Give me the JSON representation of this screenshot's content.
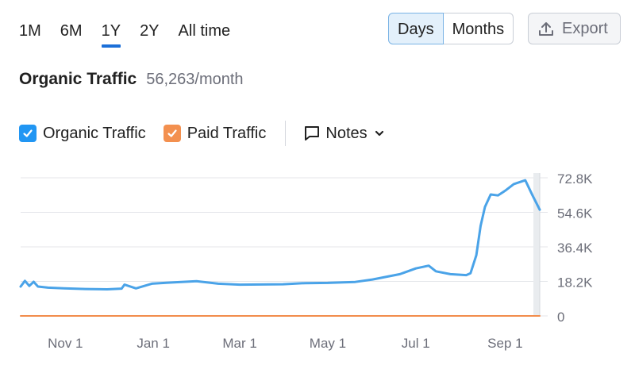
{
  "range_tabs": [
    {
      "label": "1M",
      "active": false
    },
    {
      "label": "6M",
      "active": false
    },
    {
      "label": "1Y",
      "active": true
    },
    {
      "label": "2Y",
      "active": false
    },
    {
      "label": "All time",
      "active": false
    }
  ],
  "granularity": {
    "days": "Days",
    "months": "Months",
    "selected": "Days"
  },
  "export_label": "Export",
  "header": {
    "title": "Organic Traffic",
    "value": "56,263/month"
  },
  "legend": {
    "organic": "Organic Traffic",
    "paid": "Paid Traffic",
    "notes": "Notes"
  },
  "colors": {
    "organic": "#4aa3e8",
    "paid": "#f28c4b",
    "checkbox_organic": "#2196f3",
    "checkbox_paid": "#f3904f",
    "active_tab": "#1b6fd8"
  },
  "icons": {
    "export": "upload-icon",
    "notes": "comment-icon",
    "dropdown": "chevron-down-icon",
    "check": "check-icon"
  },
  "chart_data": {
    "type": "line",
    "x_tick_labels": [
      "Nov 1",
      "Jan 1",
      "Mar 1",
      "May 1",
      "Jul 1",
      "Sep 1"
    ],
    "y_tick_labels": [
      "72.8K",
      "54.6K",
      "36.4K",
      "18.2K",
      "0"
    ],
    "ylim": [
      0,
      72800
    ],
    "grid": true,
    "series": [
      {
        "name": "Organic Traffic",
        "x": [
          "2023-10-01",
          "2023-10-04",
          "2023-10-07",
          "2023-10-10",
          "2023-10-13",
          "2023-10-20",
          "2023-10-31",
          "2023-11-15",
          "2023-11-30",
          "2023-12-10",
          "2023-12-12",
          "2023-12-20",
          "2023-12-31",
          "2024-01-10",
          "2024-01-31",
          "2024-02-15",
          "2024-03-01",
          "2024-03-31",
          "2024-04-15",
          "2024-05-01",
          "2024-05-20",
          "2024-06-01",
          "2024-06-20",
          "2024-07-01",
          "2024-07-10",
          "2024-07-15",
          "2024-07-25",
          "2024-08-05",
          "2024-08-08",
          "2024-08-12",
          "2024-08-15",
          "2024-08-18",
          "2024-08-22",
          "2024-08-27",
          "2024-09-01",
          "2024-09-07",
          "2024-09-15",
          "2024-09-20",
          "2024-09-25"
        ],
        "values": [
          15500,
          18500,
          15800,
          18000,
          15500,
          14900,
          14500,
          14200,
          14000,
          14400,
          16500,
          14500,
          17000,
          17500,
          18300,
          17000,
          16500,
          16700,
          17300,
          17400,
          17900,
          19200,
          22000,
          25000,
          26500,
          23500,
          22000,
          21500,
          22500,
          32000,
          47500,
          57500,
          64000,
          63500,
          66000,
          69500,
          71500,
          63500,
          56000
        ]
      },
      {
        "name": "Paid Traffic",
        "x": [
          "2023-10-01",
          "2024-09-25"
        ],
        "values": [
          0,
          0
        ]
      }
    ]
  }
}
